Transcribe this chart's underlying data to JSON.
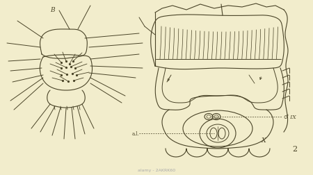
{
  "bg_color": "#f2edcc",
  "line_color": "#4a4428",
  "fig_width": 4.5,
  "fig_height": 2.52,
  "label_B": "B",
  "label_2": "2",
  "label_IX": "♂ IX",
  "label_X": "X",
  "label_al": "a.l."
}
